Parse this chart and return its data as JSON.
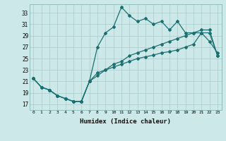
{
  "xlabel": "Humidex (Indice chaleur)",
  "bg_color": "#cce8e8",
  "grid_color": "#aacccc",
  "line_color": "#1a7070",
  "xlim": [
    -0.5,
    23.5
  ],
  "ylim": [
    16.0,
    34.5
  ],
  "xticks": [
    0,
    1,
    2,
    3,
    4,
    5,
    6,
    7,
    8,
    9,
    10,
    11,
    12,
    13,
    14,
    15,
    16,
    17,
    18,
    19,
    20,
    21,
    22,
    23
  ],
  "yticks": [
    17,
    19,
    21,
    23,
    25,
    27,
    29,
    31,
    33
  ],
  "line1_x": [
    0,
    1,
    2,
    3,
    4,
    5,
    6,
    7,
    8,
    9,
    10,
    11,
    12,
    13,
    14,
    15,
    16,
    17,
    18,
    19,
    20,
    21,
    22,
    23
  ],
  "line1_y": [
    21.5,
    20.0,
    19.5,
    18.5,
    18.0,
    17.5,
    17.5,
    21.0,
    27.0,
    29.5,
    30.5,
    34.0,
    32.5,
    31.5,
    32.0,
    31.0,
    31.5,
    30.0,
    31.5,
    29.5,
    29.5,
    29.5,
    28.0,
    26.0
  ],
  "line2_x": [
    0,
    1,
    2,
    3,
    4,
    5,
    6,
    7,
    8,
    9,
    10,
    11,
    12,
    13,
    14,
    15,
    16,
    17,
    18,
    19,
    20,
    21,
    22,
    23
  ],
  "line2_y": [
    21.5,
    20.0,
    19.5,
    18.5,
    18.0,
    17.5,
    17.5,
    21.0,
    22.0,
    23.0,
    23.5,
    24.0,
    24.5,
    25.0,
    25.3,
    25.6,
    26.0,
    26.2,
    26.5,
    27.0,
    27.5,
    29.5,
    29.5,
    25.5
  ],
  "line3_x": [
    0,
    1,
    2,
    3,
    4,
    5,
    6,
    7,
    8,
    9,
    10,
    11,
    12,
    13,
    14,
    15,
    16,
    17,
    18,
    19,
    20,
    21,
    22,
    23
  ],
  "line3_y": [
    21.5,
    20.0,
    19.5,
    18.5,
    18.0,
    17.5,
    17.5,
    21.0,
    22.5,
    23.0,
    24.0,
    24.5,
    25.5,
    26.0,
    26.5,
    27.0,
    27.5,
    28.0,
    28.5,
    29.0,
    29.5,
    30.0,
    30.0,
    25.5
  ]
}
